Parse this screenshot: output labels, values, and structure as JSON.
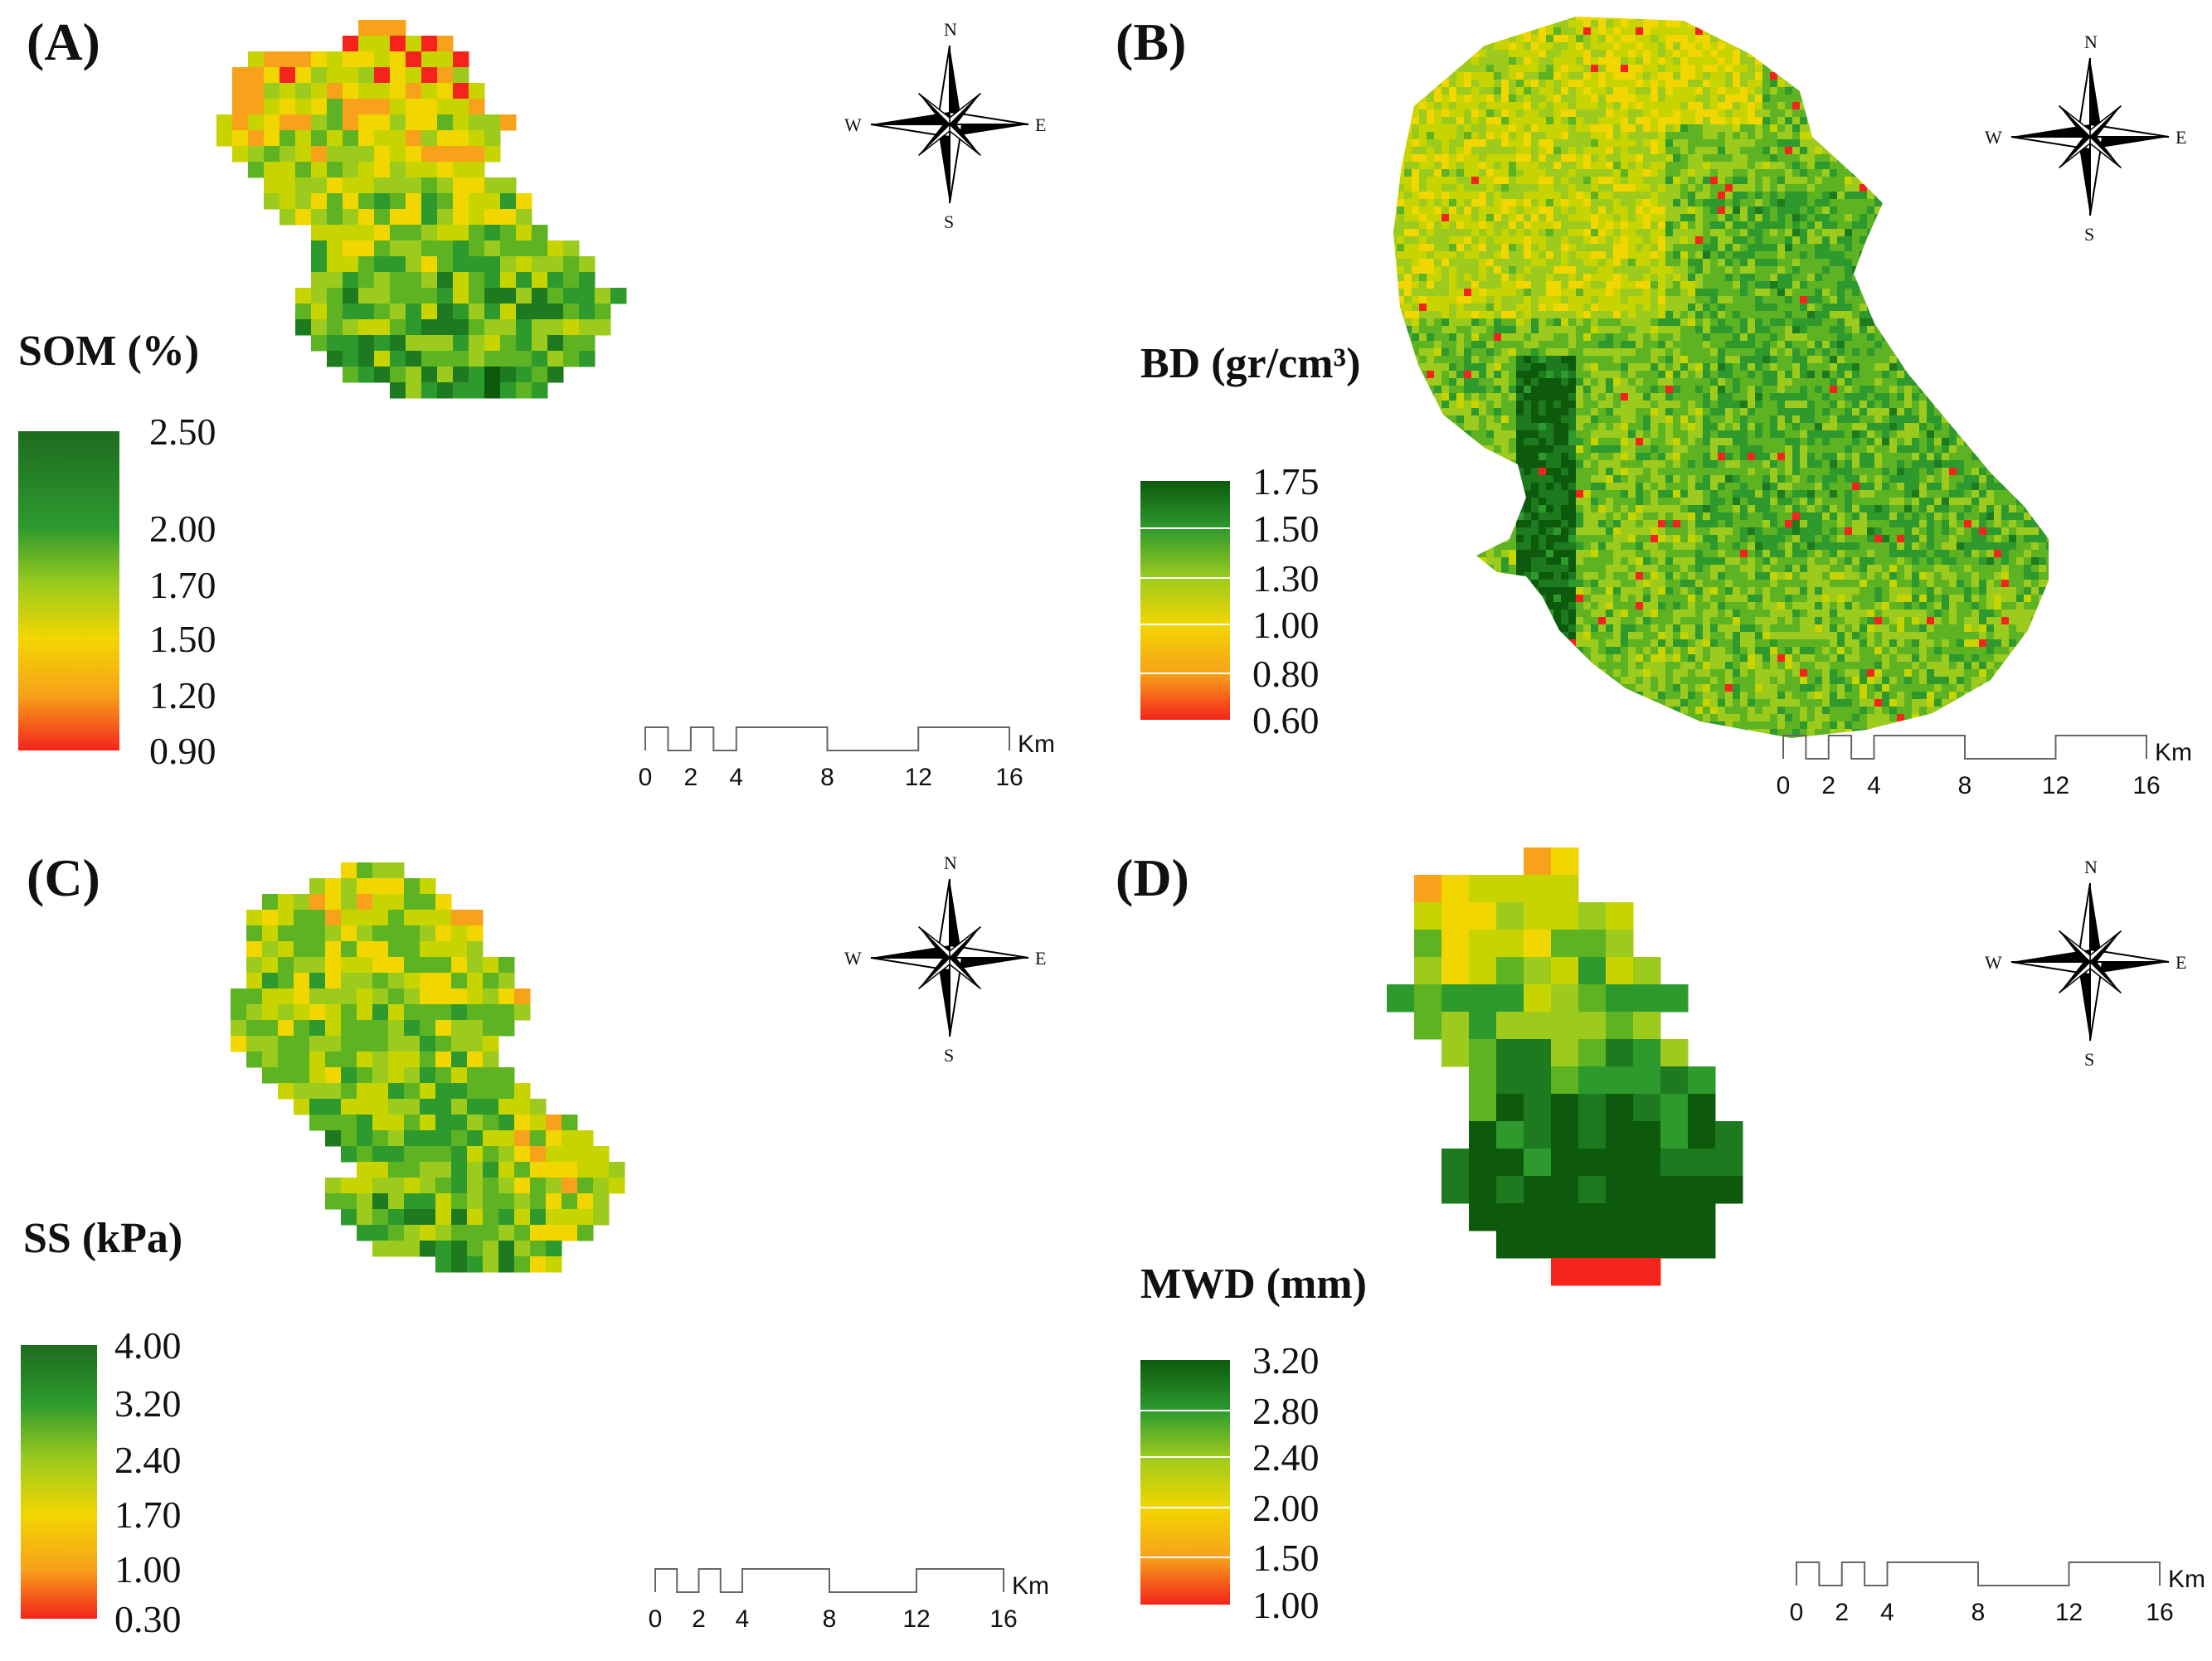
{
  "panels": [
    {
      "id": "A",
      "label": "(A)",
      "variable": "SOM (%)",
      "ticks": [
        "2.50",
        "2.00",
        "1.70",
        "1.50",
        "1.20",
        "0.90"
      ],
      "ramp_colors": [
        "#1e6b1e",
        "#2e9a2e",
        "#9ccb1e",
        "#f2d600",
        "#f7a21a",
        "#f4241c"
      ],
      "scalebar": {
        "ticks": [
          "0",
          "2",
          "4",
          "8",
          "12",
          "16"
        ],
        "unit": "Km"
      },
      "compass": {
        "n": "N",
        "s": "S",
        "e": "E",
        "w": "W"
      }
    },
    {
      "id": "B",
      "label": "(B)",
      "variable": "BD (gr/cm³)",
      "ticks": [
        "1.75",
        "1.50",
        "1.30",
        "1.00",
        "0.80",
        "0.60"
      ],
      "ramp_colors": [
        "#0d5a0d",
        "#2e9a2e",
        "#9ccb1e",
        "#f2d600",
        "#f7a21a",
        "#f4241c"
      ],
      "scalebar": {
        "ticks": [
          "0",
          "2",
          "4",
          "8",
          "12",
          "16"
        ],
        "unit": "Km"
      },
      "compass": {
        "n": "N",
        "s": "S",
        "e": "E",
        "w": "W"
      }
    },
    {
      "id": "C",
      "label": "(C)",
      "variable": "SS (kPa)",
      "ticks": [
        "4.00",
        "3.20",
        "2.40",
        "1.70",
        "1.00",
        "0.30"
      ],
      "ramp_colors": [
        "#1e6b1e",
        "#2e9a2e",
        "#9ccb1e",
        "#f2d600",
        "#f7a21a",
        "#f4241c"
      ],
      "scalebar": {
        "ticks": [
          "0",
          "2",
          "4",
          "8",
          "12",
          "16"
        ],
        "unit": "Km"
      },
      "compass": {
        "n": "N",
        "s": "S",
        "e": "E",
        "w": "W"
      }
    },
    {
      "id": "D",
      "label": "(D)",
      "variable": "MWD (mm)",
      "ticks": [
        "3.20",
        "2.80",
        "2.40",
        "2.00",
        "1.50",
        "1.00"
      ],
      "ramp_colors": [
        "#0d5a0d",
        "#2e9a2e",
        "#9ccb1e",
        "#f2d600",
        "#f7a21a",
        "#f4241c"
      ],
      "scalebar": {
        "ticks": [
          "0",
          "2",
          "4",
          "8",
          "12",
          "16"
        ],
        "unit": "Km"
      },
      "compass": {
        "n": "N",
        "s": "S",
        "e": "E",
        "w": "W"
      }
    }
  ],
  "value_palette": [
    "#f4241c",
    "#f7a21a",
    "#f2d600",
    "#c8d400",
    "#9ccb1e",
    "#5db322",
    "#2e9a2e",
    "#1e7a1e",
    "#0d5a0d"
  ]
}
